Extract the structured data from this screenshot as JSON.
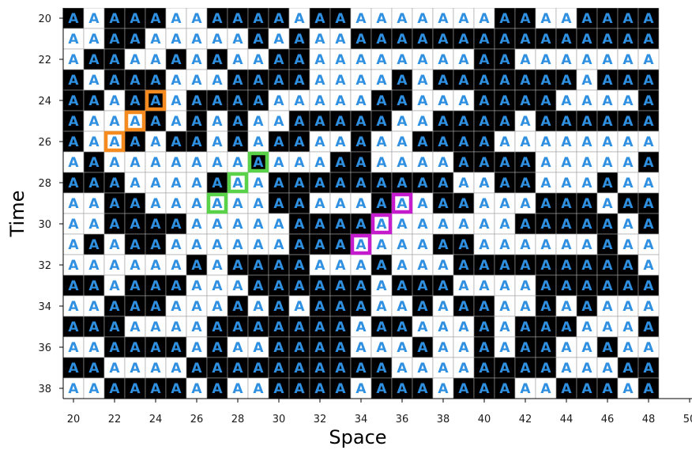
{
  "chart_data": {
    "type": "heatmap",
    "xlabel": "Space",
    "ylabel": "Time",
    "x_ticks": [
      20,
      22,
      24,
      26,
      28,
      30,
      32,
      34,
      36,
      38,
      40,
      42,
      44,
      46,
      48,
      50
    ],
    "y_ticks": [
      20,
      22,
      24,
      26,
      28,
      30,
      32,
      34,
      36,
      38
    ],
    "x_range": [
      20,
      50
    ],
    "y_range": [
      20,
      38
    ],
    "cell_glyph": "A",
    "cell_colors": {
      "1": "#000000",
      "0": "#ffffff"
    },
    "glyph_color": "#2f8fe0",
    "grid": true,
    "rows": [
      {
        "t": 20,
        "cells": "10111001111011000000011001111"
      },
      {
        "t": 21,
        "cells": "00110000010100111111111111111"
      },
      {
        "t": 22,
        "cells": "01100101001100000000110000000"
      },
      {
        "t": 23,
        "cells": "10111000111100001011111110111"
      },
      {
        "t": 24,
        "cells": "11011011110000011000111100001"
      },
      {
        "t": 25,
        "cells": "10001010100111110011110111111"
      },
      {
        "t": 26,
        "cells": "10010110101100100111100000000"
      },
      {
        "t": 27,
        "cells": "01000000010001100001111000001"
      },
      {
        "t": 28,
        "cells": "11100001001111111110011000100"
      },
      {
        "t": 29,
        "cells": "00110000001100010011000111011"
      },
      {
        "t": 30,
        "cells": "00111100000111100000001111101"
      },
      {
        "t": 31,
        "cells": "01011000000111000011000000100"
      },
      {
        "t": 32,
        "cells": "00000010111100010001111111110"
      },
      {
        "t": 33,
        "cells": "11011100011111101110000111111"
      },
      {
        "t": 34,
        "cells": "00111000101011100101100101000"
      },
      {
        "t": 35,
        "cells": "11100001111111011000101110001"
      },
      {
        "t": 36,
        "cells": "00111101001111000100101100100"
      },
      {
        "t": 37,
        "cells": "11000011111111110000111100011"
      },
      {
        "t": 38,
        "cells": "00111101001111011101110011101"
      }
    ],
    "highlights": [
      {
        "color": "#f58a1f",
        "cells": [
          [
            24,
            24
          ],
          [
            23,
            25
          ],
          [
            22,
            26
          ]
        ]
      },
      {
        "color": "#59d24a",
        "cells": [
          [
            29,
            27
          ],
          [
            28,
            28
          ],
          [
            27,
            29
          ]
        ]
      },
      {
        "color": "#c41ccc",
        "cells": [
          [
            36,
            29
          ],
          [
            35,
            30
          ],
          [
            34,
            31
          ]
        ]
      }
    ]
  }
}
